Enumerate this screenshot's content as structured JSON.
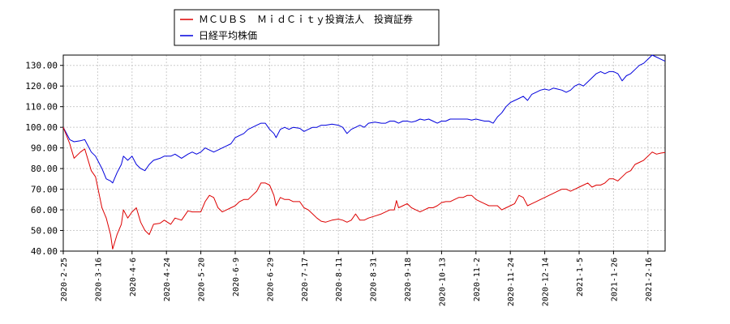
{
  "chart_data": {
    "type": "line",
    "title": "",
    "xlabel": "",
    "ylabel": "",
    "ylim": [
      40,
      135
    ],
    "y_ticks": [
      "40.00",
      "50.00",
      "60.00",
      "70.00",
      "80.00",
      "90.00",
      "100.00",
      "110.00",
      "120.00",
      "130.00"
    ],
    "x_ticks": [
      "2020-2-25",
      "2020-3-16",
      "2020-4-6",
      "2020-4-24",
      "2020-5-20",
      "2020-6-9",
      "2020-6-29",
      "2020-7-17",
      "2020-8-11",
      "2020-8-31",
      "2020-9-18",
      "2020-10-13",
      "2020-11-2",
      "2020-11-24",
      "2020-12-14",
      "2021-1-5",
      "2021-1-26",
      "2021-2-16"
    ],
    "grid": true,
    "legend_position": "top",
    "series": [
      {
        "name": "ＭＣＵＢＳ　ＭｉｄＣｉｔｙ投資法人　投資証券",
        "color": "#dd0000",
        "points": [
          [
            0,
            100
          ],
          [
            3,
            92
          ],
          [
            5,
            85
          ],
          [
            8,
            88
          ],
          [
            10,
            89.5
          ],
          [
            13,
            79
          ],
          [
            15,
            76
          ],
          [
            18,
            61
          ],
          [
            20,
            56
          ],
          [
            22,
            48
          ],
          [
            23,
            41
          ],
          [
            25,
            48
          ],
          [
            27,
            53
          ],
          [
            28,
            60
          ],
          [
            30,
            56
          ],
          [
            32,
            59
          ],
          [
            34,
            61
          ],
          [
            36,
            54
          ],
          [
            38,
            50
          ],
          [
            40,
            48
          ],
          [
            42,
            53
          ],
          [
            45,
            53.5
          ],
          [
            47,
            55
          ],
          [
            50,
            53
          ],
          [
            52,
            56
          ],
          [
            55,
            55
          ],
          [
            58,
            59.5
          ],
          [
            60,
            59
          ],
          [
            62,
            59
          ],
          [
            64,
            59
          ],
          [
            66,
            64
          ],
          [
            68,
            67
          ],
          [
            70,
            66
          ],
          [
            72,
            61
          ],
          [
            74,
            59
          ],
          [
            76,
            60
          ],
          [
            78,
            61
          ],
          [
            80,
            62
          ],
          [
            82,
            64
          ],
          [
            84,
            65
          ],
          [
            86,
            65
          ],
          [
            88,
            67
          ],
          [
            90,
            69
          ],
          [
            92,
            73
          ],
          [
            94,
            73
          ],
          [
            96,
            72
          ],
          [
            98,
            67
          ],
          [
            99,
            62
          ],
          [
            101,
            66
          ],
          [
            103,
            65
          ],
          [
            105,
            65
          ],
          [
            107,
            64
          ],
          [
            110,
            64
          ],
          [
            112,
            61
          ],
          [
            114,
            60
          ],
          [
            116,
            58
          ],
          [
            118,
            56
          ],
          [
            120,
            54.5
          ],
          [
            122,
            54
          ],
          [
            125,
            55
          ],
          [
            128,
            55.5
          ],
          [
            130,
            55
          ],
          [
            132,
            54
          ],
          [
            134,
            55
          ],
          [
            136,
            58
          ],
          [
            138,
            55
          ],
          [
            140,
            55
          ],
          [
            142,
            56
          ],
          [
            145,
            57
          ],
          [
            148,
            58
          ],
          [
            150,
            59
          ],
          [
            152,
            60
          ],
          [
            154,
            60
          ],
          [
            155,
            64.5
          ],
          [
            156,
            61
          ],
          [
            158,
            62
          ],
          [
            160,
            63
          ],
          [
            162,
            61
          ],
          [
            164,
            60
          ],
          [
            166,
            59
          ],
          [
            168,
            60
          ],
          [
            170,
            61
          ],
          [
            172,
            61
          ],
          [
            174,
            62
          ],
          [
            176,
            63.5
          ],
          [
            178,
            64
          ],
          [
            180,
            64
          ],
          [
            182,
            65
          ],
          [
            184,
            66
          ],
          [
            186,
            66
          ],
          [
            188,
            67
          ],
          [
            190,
            67
          ],
          [
            192,
            65
          ],
          [
            194,
            64
          ],
          [
            196,
            63
          ],
          [
            198,
            62
          ],
          [
            200,
            62
          ],
          [
            202,
            62
          ],
          [
            204,
            60
          ],
          [
            206,
            61
          ],
          [
            208,
            62
          ],
          [
            210,
            63
          ],
          [
            212,
            67
          ],
          [
            214,
            66
          ],
          [
            216,
            62
          ],
          [
            218,
            63
          ],
          [
            220,
            64
          ],
          [
            222,
            65
          ],
          [
            224,
            66
          ],
          [
            226,
            67
          ],
          [
            228,
            68
          ],
          [
            230,
            69
          ],
          [
            232,
            70
          ],
          [
            234,
            70
          ],
          [
            236,
            69
          ],
          [
            238,
            70
          ],
          [
            240,
            71
          ],
          [
            242,
            72
          ],
          [
            244,
            73
          ],
          [
            246,
            71
          ],
          [
            248,
            72
          ],
          [
            250,
            72
          ],
          [
            252,
            73
          ],
          [
            254,
            75
          ],
          [
            256,
            75
          ],
          [
            258,
            74
          ],
          [
            260,
            76
          ],
          [
            262,
            78
          ],
          [
            264,
            79
          ],
          [
            266,
            82
          ],
          [
            268,
            83
          ],
          [
            270,
            84
          ],
          [
            272,
            86
          ],
          [
            274,
            88
          ],
          [
            276,
            87
          ],
          [
            278,
            87.5
          ],
          [
            280,
            87.8
          ]
        ]
      },
      {
        "name": "日経平均株価",
        "color": "#0000dd",
        "points": [
          [
            0,
            100
          ],
          [
            3,
            94
          ],
          [
            5,
            93
          ],
          [
            8,
            93.5
          ],
          [
            10,
            94
          ],
          [
            13,
            88
          ],
          [
            15,
            86
          ],
          [
            18,
            80
          ],
          [
            20,
            75
          ],
          [
            22,
            74
          ],
          [
            23,
            73
          ],
          [
            25,
            78
          ],
          [
            27,
            82
          ],
          [
            28,
            86
          ],
          [
            30,
            84
          ],
          [
            32,
            86
          ],
          [
            34,
            82
          ],
          [
            36,
            80
          ],
          [
            38,
            79
          ],
          [
            40,
            82
          ],
          [
            42,
            84
          ],
          [
            45,
            85
          ],
          [
            47,
            86
          ],
          [
            50,
            86
          ],
          [
            52,
            87
          ],
          [
            55,
            85
          ],
          [
            58,
            87
          ],
          [
            60,
            88
          ],
          [
            62,
            87
          ],
          [
            64,
            88
          ],
          [
            66,
            90
          ],
          [
            68,
            89
          ],
          [
            70,
            88
          ],
          [
            72,
            89
          ],
          [
            74,
            90
          ],
          [
            76,
            91
          ],
          [
            78,
            92
          ],
          [
            80,
            95
          ],
          [
            82,
            96
          ],
          [
            84,
            97
          ],
          [
            86,
            99
          ],
          [
            88,
            100
          ],
          [
            90,
            101
          ],
          [
            92,
            102
          ],
          [
            94,
            102
          ],
          [
            96,
            99
          ],
          [
            98,
            97
          ],
          [
            99,
            95
          ],
          [
            101,
            99
          ],
          [
            103,
            100
          ],
          [
            105,
            99
          ],
          [
            107,
            100
          ],
          [
            110,
            99.5
          ],
          [
            112,
            98
          ],
          [
            114,
            99
          ],
          [
            116,
            100
          ],
          [
            118,
            100
          ],
          [
            120,
            101
          ],
          [
            122,
            101
          ],
          [
            125,
            101.5
          ],
          [
            128,
            101
          ],
          [
            130,
            100
          ],
          [
            132,
            97
          ],
          [
            134,
            99
          ],
          [
            136,
            100
          ],
          [
            138,
            101
          ],
          [
            140,
            100
          ],
          [
            142,
            102
          ],
          [
            145,
            102.5
          ],
          [
            148,
            102
          ],
          [
            150,
            102
          ],
          [
            152,
            103
          ],
          [
            154,
            103
          ],
          [
            156,
            102
          ],
          [
            158,
            103
          ],
          [
            160,
            103
          ],
          [
            162,
            102.5
          ],
          [
            164,
            103
          ],
          [
            166,
            104
          ],
          [
            168,
            103.5
          ],
          [
            170,
            104
          ],
          [
            172,
            103
          ],
          [
            174,
            102
          ],
          [
            176,
            103
          ],
          [
            178,
            103
          ],
          [
            180,
            104
          ],
          [
            182,
            104
          ],
          [
            184,
            104
          ],
          [
            186,
            104
          ],
          [
            188,
            104
          ],
          [
            190,
            103.5
          ],
          [
            192,
            104
          ],
          [
            194,
            103.5
          ],
          [
            196,
            103
          ],
          [
            198,
            103
          ],
          [
            200,
            102
          ],
          [
            202,
            105
          ],
          [
            204,
            107
          ],
          [
            206,
            110
          ],
          [
            208,
            112
          ],
          [
            210,
            113
          ],
          [
            212,
            114
          ],
          [
            214,
            115
          ],
          [
            216,
            113
          ],
          [
            218,
            116
          ],
          [
            220,
            117
          ],
          [
            222,
            118
          ],
          [
            224,
            118.5
          ],
          [
            226,
            118
          ],
          [
            228,
            119
          ],
          [
            230,
            118.5
          ],
          [
            232,
            118
          ],
          [
            234,
            117
          ],
          [
            236,
            118
          ],
          [
            238,
            120
          ],
          [
            240,
            121
          ],
          [
            242,
            120
          ],
          [
            244,
            122
          ],
          [
            246,
            124
          ],
          [
            248,
            126
          ],
          [
            250,
            127
          ],
          [
            252,
            126
          ],
          [
            254,
            127
          ],
          [
            256,
            127
          ],
          [
            258,
            126
          ],
          [
            260,
            122.5
          ],
          [
            262,
            125
          ],
          [
            264,
            126
          ],
          [
            266,
            128
          ],
          [
            268,
            130
          ],
          [
            270,
            131
          ],
          [
            272,
            133
          ],
          [
            274,
            135
          ],
          [
            276,
            134
          ],
          [
            278,
            133
          ],
          [
            280,
            132
          ]
        ]
      }
    ]
  }
}
